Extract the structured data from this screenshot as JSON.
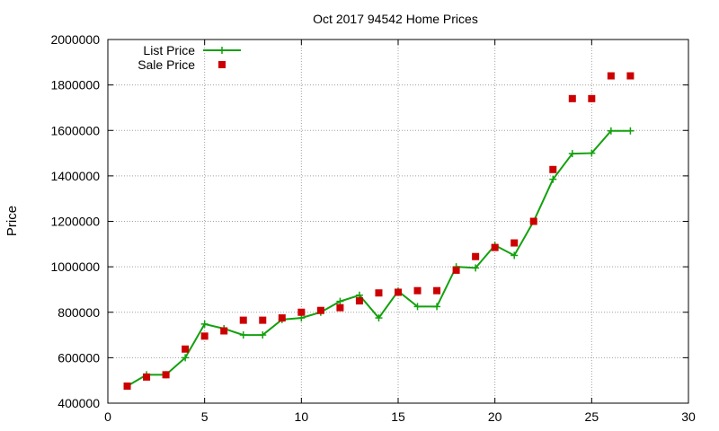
{
  "chart_data": {
    "type": "line",
    "title": "Oct 2017 94542 Home Prices",
    "xlabel": "",
    "ylabel": "Price",
    "xlim": [
      0,
      30
    ],
    "ylim": [
      400000,
      2000000
    ],
    "xticks": [
      0,
      5,
      10,
      15,
      20,
      25,
      30
    ],
    "yticks": [
      400000,
      600000,
      800000,
      1000000,
      1200000,
      1400000,
      1600000,
      1800000,
      2000000
    ],
    "grid": true,
    "legend_position": "top-left",
    "series": [
      {
        "name": "List Price",
        "style": "line-with-plus-markers",
        "color": "#13a10e",
        "x": [
          1,
          2,
          3,
          4,
          5,
          6,
          7,
          8,
          9,
          10,
          11,
          12,
          13,
          14,
          15,
          16,
          17,
          18,
          19,
          20,
          21,
          22,
          23,
          24,
          25,
          26,
          27
        ],
        "y": [
          475000,
          525000,
          525000,
          600000,
          748000,
          728000,
          700000,
          700000,
          768000,
          775000,
          800000,
          848000,
          875000,
          775000,
          893000,
          825000,
          825000,
          1000000,
          995000,
          1095000,
          1050000,
          1200000,
          1385000,
          1498000,
          1500000,
          1598000,
          1598000
        ]
      },
      {
        "name": "Sale Price",
        "style": "square-markers",
        "color": "#cc0000",
        "x": [
          1,
          2,
          3,
          4,
          5,
          6,
          7,
          8,
          9,
          10,
          11,
          12,
          13,
          14,
          15,
          16,
          17,
          18,
          19,
          20,
          21,
          22,
          23,
          24,
          25,
          26,
          27
        ],
        "y": [
          475000,
          515000,
          525000,
          638000,
          695000,
          718000,
          765000,
          765000,
          775000,
          800000,
          808000,
          820000,
          850000,
          885000,
          888000,
          895000,
          895000,
          985000,
          1045000,
          1085000,
          1105000,
          1200000,
          1428000,
          1740000,
          1740000,
          1840000,
          1840000
        ]
      }
    ]
  }
}
